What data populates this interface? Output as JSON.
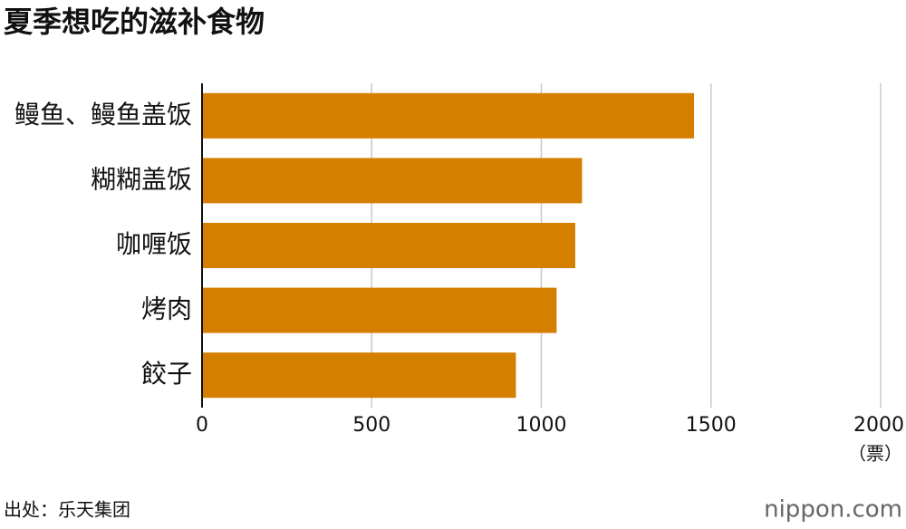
{
  "chart_data": {
    "type": "bar",
    "orientation": "horizontal",
    "title": "夏季想吃的滋补食物",
    "categories": [
      "鳗鱼、鳗鱼盖饭",
      "糊糊盖饭",
      "咖喱饭",
      "烤肉",
      "餃子"
    ],
    "values": [
      1450,
      1120,
      1100,
      1045,
      925
    ],
    "color": "#d47f00",
    "xlim": [
      0,
      2000
    ],
    "xticks": [
      0,
      500,
      1000,
      1500,
      2000
    ],
    "x_unit": "（票）",
    "grid": true,
    "source": "出处：乐天集团",
    "brand": "nippon.com"
  }
}
